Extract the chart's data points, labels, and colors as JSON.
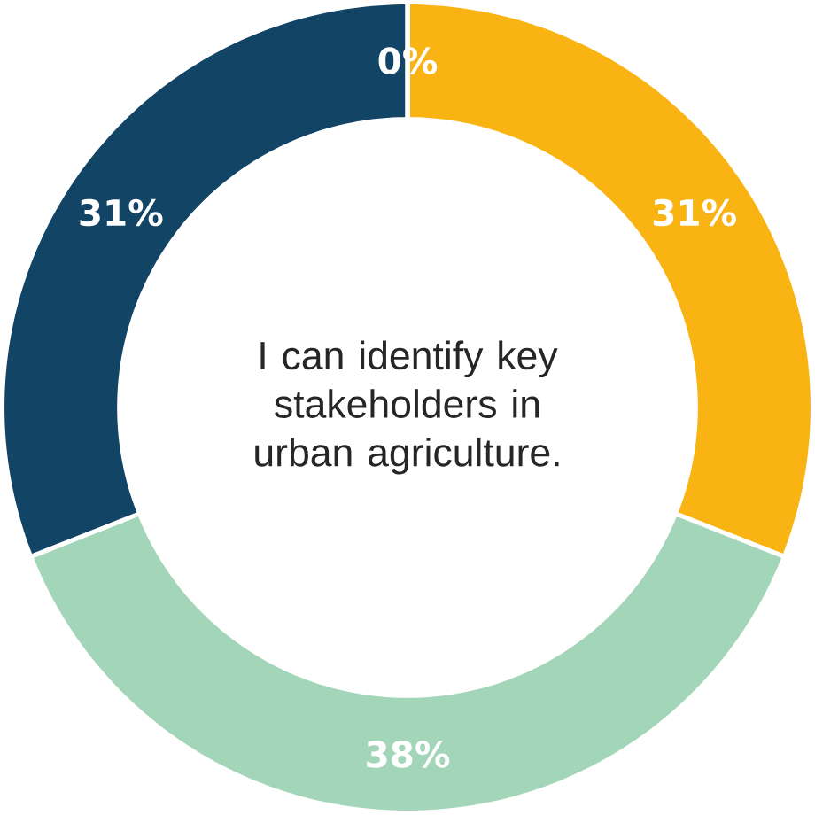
{
  "chart_data": {
    "type": "donut",
    "title": "I can identify key stakeholders in urban agriculture.",
    "categories": [
      null,
      null,
      null,
      null
    ],
    "values": [
      31,
      38,
      31,
      0
    ],
    "colors": [
      "#f9b312",
      "#a3d5b9",
      "#124466",
      "#d9d9d9"
    ],
    "value_labels": [
      "31%",
      "38%",
      "31%",
      "0%"
    ]
  }
}
